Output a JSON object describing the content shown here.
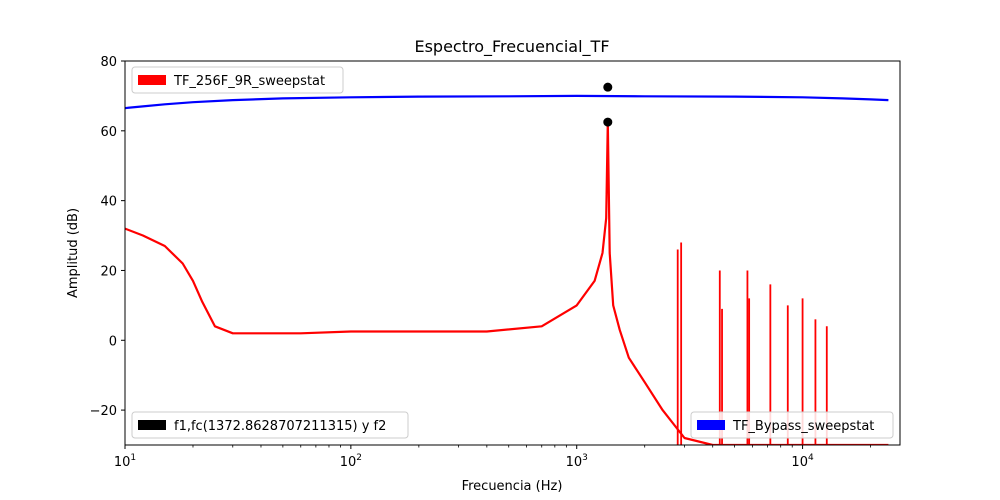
{
  "chart_data": {
    "type": "line",
    "title": "Espectro_Frecuencial_TF",
    "xlabel": "Frecuencia (Hz)",
    "ylabel": "Amplitud (dB)",
    "xscale": "log",
    "xlim": [
      10,
      27000
    ],
    "ylim": [
      -30,
      80
    ],
    "x_ticks": [
      {
        "value": 10,
        "base": "10",
        "exp": "1"
      },
      {
        "value": 100,
        "base": "10",
        "exp": "2"
      },
      {
        "value": 1000,
        "base": "10",
        "exp": "3"
      },
      {
        "value": 10000,
        "base": "10",
        "exp": "4"
      }
    ],
    "y_ticks": [
      {
        "value": -20,
        "label": "−20"
      },
      {
        "value": 0,
        "label": "0"
      },
      {
        "value": 20,
        "label": "20"
      },
      {
        "value": 40,
        "label": "40"
      },
      {
        "value": 60,
        "label": "60"
      },
      {
        "value": 80,
        "label": "80"
      }
    ],
    "grid": false,
    "series": [
      {
        "name": "TF_Bypass_sweepstat",
        "color": "#0000ff",
        "x": [
          10,
          12,
          15,
          20,
          30,
          50,
          100,
          200,
          500,
          1000,
          2000,
          5000,
          10000,
          15000,
          20000,
          24000
        ],
        "y": [
          66.5,
          67.0,
          67.6,
          68.2,
          68.8,
          69.3,
          69.6,
          69.8,
          69.9,
          70.0,
          69.9,
          69.8,
          69.6,
          69.3,
          69.0,
          68.8
        ]
      },
      {
        "name": "TF_256F_9R_sweepstat",
        "color": "#ff0000",
        "x": [
          10,
          12,
          15,
          18,
          20,
          22,
          25,
          30,
          40,
          60,
          100,
          200,
          400,
          700,
          1000,
          1200,
          1300,
          1350,
          1372.86,
          1400,
          1450,
          1550,
          1700,
          2000,
          2400,
          3000,
          4000,
          6000,
          10000,
          15000,
          20000,
          24000
        ],
        "y": [
          32,
          30,
          27,
          22,
          17,
          11,
          4,
          2,
          2,
          2,
          2.5,
          2.5,
          2.5,
          4,
          10,
          17,
          25,
          35,
          62.5,
          25,
          10,
          3,
          -5,
          -12,
          -20,
          -28,
          -30,
          -30,
          -30,
          -30,
          -30,
          -30
        ]
      }
    ],
    "spikes": {
      "series": "TF_256F_9R_sweepstat",
      "x": [
        2800,
        2900,
        4300,
        4400,
        5700,
        5800,
        7200,
        8600,
        10000,
        11400,
        12800
      ],
      "y": [
        26,
        28,
        20,
        9,
        20,
        12,
        16,
        10,
        12,
        6,
        4
      ]
    },
    "markers": {
      "name": "f1,fc(1372.8628707211315) y f2",
      "color": "#000000",
      "points": [
        {
          "x": 1372.8628707211315,
          "y": 72.5
        },
        {
          "x": 1372.8628707211315,
          "y": 62.5
        }
      ]
    },
    "legends": [
      {
        "label": "TF_256F_9R_sweepstat",
        "color": "#ff0000",
        "position": "upper-left"
      },
      {
        "label": "f1,fc(1372.8628707211315) y f2",
        "color": "#000000",
        "position": "lower-left"
      },
      {
        "label": "TF_Bypass_sweepstat",
        "color": "#0000ff",
        "position": "lower-right"
      }
    ]
  }
}
